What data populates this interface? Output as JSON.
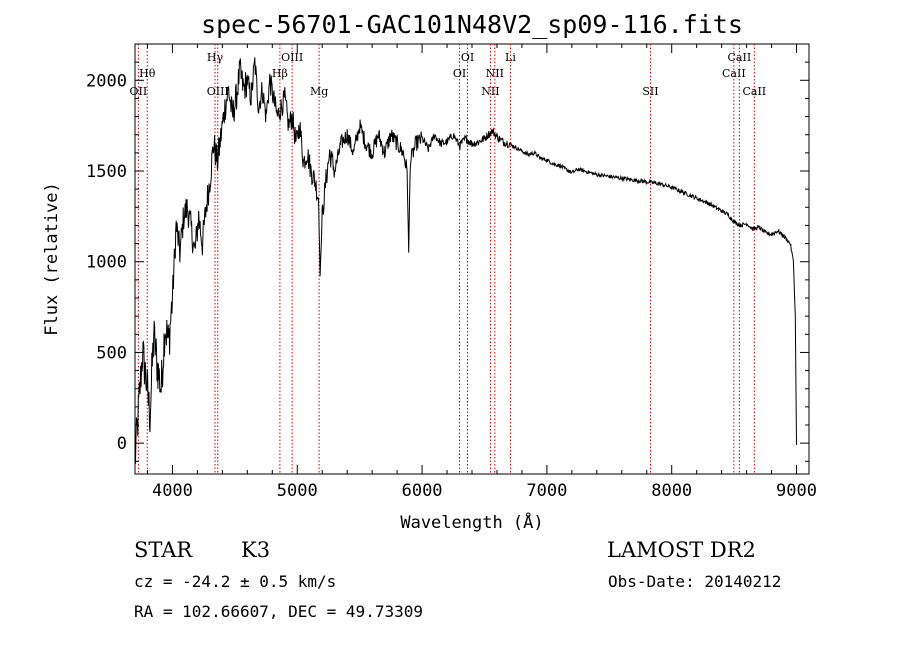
{
  "chart_data": {
    "type": "line",
    "title": "spec-56701-GAC101N48V2_sp09-116.fits",
    "xlabel": "Wavelength (Å)",
    "ylabel": "Flux (relative)",
    "xlim": [
      3700,
      9100
    ],
    "ylim": [
      -170,
      2200
    ],
    "x_ticks": [
      4000,
      5000,
      6000,
      7000,
      8000,
      9000
    ],
    "y_ticks": [
      0,
      500,
      1000,
      1500,
      2000
    ],
    "grid": false,
    "series": [
      {
        "x": [
          3700,
          3730,
          3760,
          3790,
          3820,
          3850,
          3880,
          3910,
          3940,
          3970,
          4000,
          4030,
          4060,
          4090,
          4120,
          4150,
          4180,
          4210,
          4240,
          4270,
          4300,
          4330,
          4360,
          4390,
          4420,
          4450,
          4480,
          4510,
          4540,
          4570,
          4600,
          4630,
          4660,
          4690,
          4720,
          4750,
          4780,
          4810,
          4840,
          4870,
          4900,
          4930,
          4960,
          4990,
          5020,
          5050,
          5080,
          5110,
          5140,
          5170,
          5183,
          5200,
          5230,
          5260,
          5300,
          5350,
          5400,
          5450,
          5500,
          5550,
          5600,
          5650,
          5700,
          5750,
          5800,
          5850,
          5880,
          5893,
          5905,
          5950,
          6000,
          6050,
          6100,
          6150,
          6200,
          6250,
          6300,
          6350,
          6400,
          6450,
          6500,
          6530,
          6563,
          6600,
          6650,
          6700,
          6750,
          6800,
          6850,
          6900,
          6950,
          7000,
          7050,
          7100,
          7150,
          7200,
          7250,
          7300,
          7400,
          7500,
          7600,
          7700,
          7800,
          7900,
          8000,
          8100,
          8200,
          8300,
          8400,
          8450,
          8500,
          8550,
          8600,
          8650,
          8700,
          8750,
          8800,
          8850,
          8900,
          8950,
          8975,
          8990,
          9000
        ],
        "y": [
          -100,
          200,
          500,
          350,
          150,
          600,
          420,
          300,
          650,
          550,
          800,
          1200,
          1050,
          1250,
          1300,
          1180,
          1050,
          1250,
          1100,
          1300,
          1450,
          1650,
          1550,
          1700,
          1850,
          1950,
          1800,
          1900,
          2050,
          1950,
          2000,
          1900,
          2100,
          1850,
          1950,
          1800,
          2000,
          1900,
          1800,
          1850,
          1900,
          1750,
          1800,
          1650,
          1750,
          1550,
          1600,
          1500,
          1450,
          1350,
          920,
          1250,
          1450,
          1600,
          1500,
          1650,
          1700,
          1600,
          1750,
          1650,
          1600,
          1700,
          1600,
          1700,
          1650,
          1600,
          1500,
          1050,
          1550,
          1650,
          1680,
          1620,
          1700,
          1650,
          1660,
          1700,
          1640,
          1680,
          1650,
          1660,
          1680,
          1700,
          1720,
          1690,
          1660,
          1650,
          1630,
          1610,
          1590,
          1600,
          1570,
          1560,
          1540,
          1530,
          1510,
          1490,
          1510,
          1500,
          1480,
          1470,
          1460,
          1450,
          1440,
          1430,
          1410,
          1380,
          1350,
          1320,
          1280,
          1260,
          1220,
          1200,
          1210,
          1180,
          1190,
          1160,
          1150,
          1170,
          1140,
          1100,
          1000,
          700,
          -10
        ]
      }
    ],
    "spectral_lines": [
      {
        "wavelength": 3727,
        "label": "OII",
        "row": 3
      },
      {
        "wavelength": 3798,
        "label": "Hθ",
        "row": 2
      },
      {
        "wavelength": 4341,
        "label": "Hγ",
        "row": 1
      },
      {
        "wavelength": 4363,
        "label": "OIII",
        "row": 3
      },
      {
        "wavelength": 4861,
        "label": "Hβ",
        "row": 2
      },
      {
        "wavelength": 4959,
        "label": "OIII",
        "row": 1
      },
      {
        "wavelength": 5175,
        "label": "Mg",
        "row": 3
      },
      {
        "wavelength": 6300,
        "label": "OI",
        "row": 2
      },
      {
        "wavelength": 6364,
        "label": "OI",
        "row": 1
      },
      {
        "wavelength": 6548,
        "label": "NII",
        "row": 3
      },
      {
        "wavelength": 6583,
        "label": "NII",
        "row": 2
      },
      {
        "wavelength": 6708,
        "label": "Li",
        "row": 1
      },
      {
        "wavelength": 7830,
        "label": "SII",
        "row": 3
      },
      {
        "wavelength": 8498,
        "label": "CaII",
        "row": 2
      },
      {
        "wavelength": 8542,
        "label": "CaII",
        "row": 1
      },
      {
        "wavelength": 8662,
        "label": "CaII",
        "row": 3
      }
    ]
  },
  "footer": {
    "class_label": "STAR",
    "subclass": "K3",
    "survey": "LAMOST DR2",
    "cz": "cz = -24.2 ± 0.5 km/s",
    "obs_date": "Obs-Date: 20140212",
    "coords": "RA = 102.66607, DEC =  49.73309"
  },
  "colors": {
    "spectrum": "#000000",
    "line_markers": "#cc0000"
  }
}
